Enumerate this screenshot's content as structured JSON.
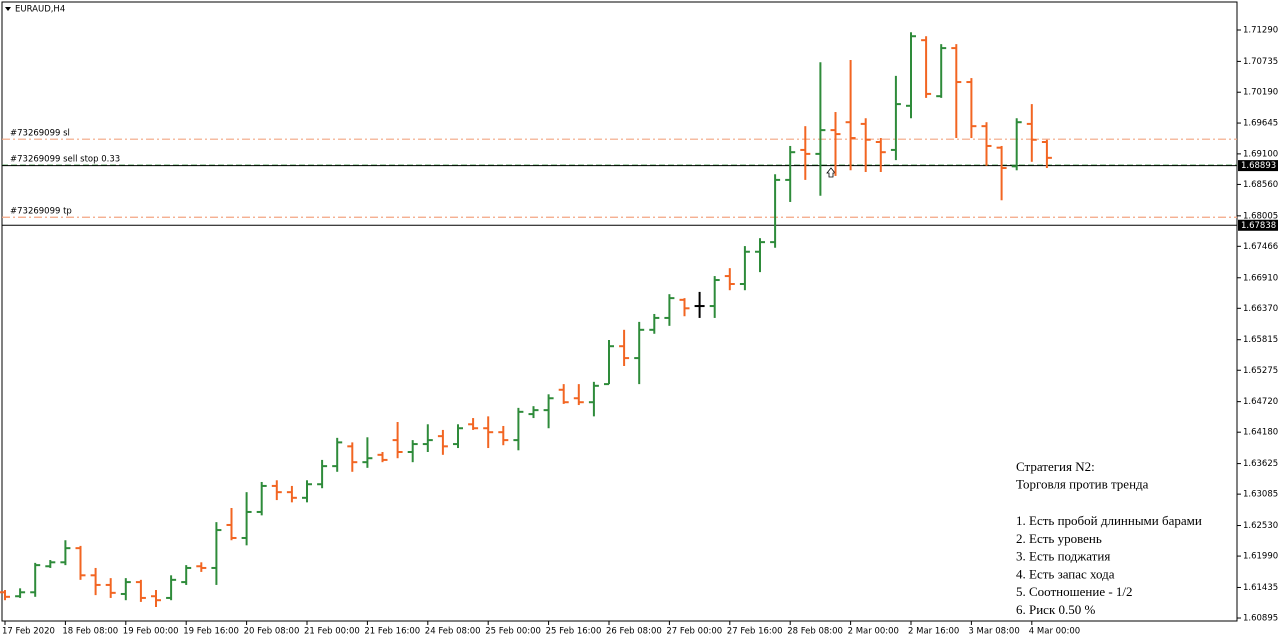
{
  "chart_data": {
    "type": "ohlc",
    "title": "EURAUD,H4",
    "categories": [
      "17 Feb 2020",
      null,
      null,
      null,
      "18 Feb 08:00",
      null,
      null,
      null,
      "19 Feb 00:00",
      null,
      null,
      null,
      "19 Feb 16:00",
      null,
      null,
      null,
      "20 Feb 08:00",
      null,
      null,
      null,
      "21 Feb 00:00",
      null,
      null,
      null,
      "21 Feb 16:00",
      null,
      null,
      null,
      "24 Feb 08:00",
      null,
      null,
      null,
      "25 Feb 00:00",
      null,
      null,
      null,
      "25 Feb 16:00",
      null,
      null,
      null,
      "26 Feb 08:00",
      null,
      null,
      null,
      "27 Feb 00:00",
      null,
      null,
      null,
      "27 Feb 16:00",
      null,
      null,
      null,
      "28 Feb 08:00",
      null,
      null,
      null,
      "2 Mar 00:00",
      null,
      null,
      null,
      "2 Mar 16:00",
      null,
      null,
      null,
      "3 Mar 08:00",
      null,
      null,
      null,
      "4 Mar 00:00",
      null
    ],
    "open": [
      1.6135,
      1.6128,
      1.6135,
      1.6181,
      1.6188,
      1.6213,
      1.6165,
      1.6148,
      1.6132,
      1.6153,
      1.6128,
      1.6125,
      1.6153,
      1.6181,
      1.6178,
      1.6254,
      1.6231,
      1.6277,
      1.6323,
      1.6312,
      1.6302,
      1.6326,
      1.6358,
      1.6393,
      1.6365,
      1.6378,
      1.6404,
      1.6383,
      1.6397,
      1.6411,
      1.6397,
      1.6432,
      1.6425,
      1.6418,
      1.6404,
      1.645,
      1.6457,
      1.6493,
      1.6478,
      1.6471,
      1.6503,
      1.657,
      1.6549,
      1.6599,
      1.662,
      1.6652,
      1.6641,
      1.6641,
      1.6694,
      1.668,
      1.6737,
      1.6754,
      1.6864,
      1.6917,
      1.691,
      1.6952,
      1.6966,
      1.6963,
      1.6931,
      1.6917,
      1.6995,
      1.7111,
      1.7012,
      1.7097,
      1.7037,
      1.6959,
      1.6921,
      1.6888,
      1.6963,
      1.6931
    ],
    "high": [
      1.6139,
      1.6142,
      1.6187,
      1.6192,
      1.6227,
      1.6217,
      1.6178,
      1.616,
      1.616,
      1.6157,
      1.6139,
      1.6165,
      1.6183,
      1.6188,
      1.6259,
      1.6284,
      1.6312,
      1.633,
      1.6333,
      1.6323,
      1.6333,
      1.6369,
      1.6408,
      1.64,
      1.6409,
      1.6383,
      1.6436,
      1.6404,
      1.6432,
      1.6422,
      1.6432,
      1.6443,
      1.6446,
      1.6429,
      1.6461,
      1.6464,
      1.6485,
      1.6503,
      1.6503,
      1.6507,
      1.6581,
      1.6599,
      1.6613,
      1.6627,
      1.6662,
      1.6655,
      1.6666,
      1.6694,
      1.6708,
      1.6747,
      1.6761,
      1.6874,
      1.6924,
      1.6959,
      1.7072,
      1.6984,
      1.7076,
      1.6973,
      1.6938,
      1.7048,
      1.7125,
      1.7118,
      1.7104,
      1.7104,
      1.7044,
      1.6966,
      1.6924,
      1.6973,
      1.6998,
      1.6935
    ],
    "low": [
      1.6121,
      1.6125,
      1.6127,
      1.6178,
      1.6183,
      1.6157,
      1.613,
      1.6125,
      1.6121,
      1.6118,
      1.6109,
      1.6121,
      1.6148,
      1.6171,
      1.6148,
      1.6227,
      1.6218,
      1.6271,
      1.6298,
      1.6294,
      1.6294,
      1.6319,
      1.6348,
      1.6348,
      1.6355,
      1.6365,
      1.6372,
      1.6365,
      1.6383,
      1.6378,
      1.639,
      1.6422,
      1.639,
      1.6395,
      1.6386,
      1.6443,
      1.6425,
      1.6468,
      1.6466,
      1.6446,
      1.6503,
      1.6535,
      1.6503,
      1.6592,
      1.6606,
      1.6623,
      1.662,
      1.662,
      1.6669,
      1.6669,
      1.6701,
      1.6744,
      1.6825,
      1.6864,
      1.6836,
      1.6871,
      1.6881,
      1.6878,
      1.6878,
      1.6899,
      1.6973,
      1.7009,
      1.7009,
      1.6938,
      1.6938,
      1.6889,
      1.6828,
      1.6881,
      1.6896,
      1.6885
    ],
    "close": [
      1.6127,
      1.6135,
      1.6183,
      1.6188,
      1.6213,
      1.6165,
      1.6148,
      1.6134,
      1.6153,
      1.6125,
      1.6121,
      1.6157,
      1.6178,
      1.6178,
      1.6245,
      1.6231,
      1.6277,
      1.6323,
      1.6312,
      1.6302,
      1.6326,
      1.6358,
      1.64,
      1.6365,
      1.6372,
      1.6369,
      1.6383,
      1.6397,
      1.6404,
      1.6393,
      1.6425,
      1.6425,
      1.6418,
      1.6404,
      1.6454,
      1.6457,
      1.6478,
      1.6471,
      1.6471,
      1.65,
      1.657,
      1.6549,
      1.6599,
      1.662,
      1.6655,
      1.6637,
      1.6641,
      1.6687,
      1.668,
      1.6737,
      1.6754,
      1.6864,
      1.6913,
      1.691,
      1.6952,
      1.6945,
      1.6938,
      1.6935,
      1.6913,
      1.6998,
      1.7118,
      1.7016,
      1.7097,
      1.7037,
      1.6959,
      1.6924,
      1.6885,
      1.6966,
      1.6935,
      1.6903
    ],
    "up_color": "#2e8b3a",
    "down_color": "#f26522",
    "flat_color": "#000000",
    "ylim": [
      1.6086,
      1.71785
    ],
    "yticks": [
      {
        "value": 1.7129,
        "label": "1.71290"
      },
      1.70735,
      {
        "value": 1.7019,
        "label": "1.70190"
      },
      1.69645,
      {
        "value": 1.691,
        "label": "1.69100"
      },
      {
        "value": 1.6856,
        "label": "1.68560"
      },
      1.68005,
      1.67466,
      {
        "value": 1.6691,
        "label": "1.66910"
      },
      {
        "value": 1.6637,
        "label": "1.66370"
      },
      1.65815,
      1.65275,
      {
        "value": 1.6472,
        "label": "1.64720"
      },
      {
        "value": 1.6418,
        "label": "1.64180"
      },
      1.63625,
      1.63085,
      {
        "value": 1.6253,
        "label": "1.62530"
      },
      {
        "value": 1.6199,
        "label": "1.61990"
      },
      1.61435,
      1.60895
    ],
    "levels": [
      {
        "label": "#73269099 sl",
        "value": 1.6936,
        "color": "#f4a582",
        "dash": "8 3 2 3"
      },
      {
        "label": "#73269099 sell stop 0.33",
        "value": 1.689,
        "color": "#2e8b3a",
        "dash": "6 3"
      },
      {
        "label": "#73269099 tp",
        "value": 1.6798,
        "color": "#f4a582",
        "dash": "8 3 2 3"
      }
    ],
    "price_lines": [
      1.68893,
      1.67838
    ],
    "annotation": {
      "heading": [
        "Стратегия N2:",
        "Торговля против тренда"
      ],
      "items": [
        "1. Есть пробой длинными барами",
        "2. Есть уровень",
        "3. Есть поджатия",
        "4. Есть запас хода",
        "5. Соотношение - 1/2",
        "6. Риск 0.50 %"
      ]
    }
  }
}
